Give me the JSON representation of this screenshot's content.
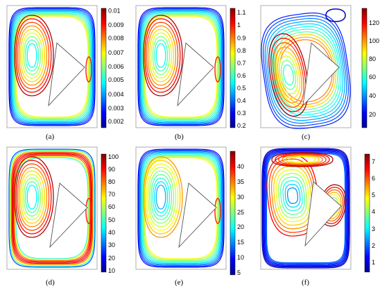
{
  "colormap": [
    "#00008f",
    "#0000ff",
    "#0080ff",
    "#00ffff",
    "#80ff80",
    "#ffff00",
    "#ff8000",
    "#ff0000",
    "#800000"
  ],
  "panels": [
    {
      "id": "a",
      "caption": "(a)",
      "pattern": "primary",
      "cbar_ticks": [
        "0.01",
        "0.009",
        "0.008",
        "0.007",
        "0.006",
        "0.005",
        "0.004",
        "0.003",
        "0.002"
      ]
    },
    {
      "id": "b",
      "caption": "(b)",
      "pattern": "primary",
      "cbar_ticks": [
        "1.1",
        "1",
        "0.9",
        "0.8",
        "0.7",
        "0.6",
        "0.5",
        "0.4",
        "0.3",
        "0.2"
      ]
    },
    {
      "id": "c",
      "caption": "(c)",
      "pattern": "secondary",
      "cbar_ticks": [
        "120",
        "100",
        "80",
        "60",
        "40",
        "20"
      ]
    },
    {
      "id": "d",
      "caption": "(d)",
      "pattern": "primary",
      "cbar_ticks": [
        "100",
        "90",
        "80",
        "70",
        "60",
        "50",
        "40",
        "30",
        "20",
        "10"
      ]
    },
    {
      "id": "e",
      "caption": "(e)",
      "pattern": "primary",
      "cbar_ticks": [
        "40",
        "35",
        "30",
        "25",
        "20",
        "15",
        "10",
        "5"
      ]
    },
    {
      "id": "f",
      "caption": "(f)",
      "pattern": "multi",
      "cbar_ticks": [
        "7",
        "6",
        "5",
        "4",
        "3",
        "2",
        "1"
      ]
    }
  ]
}
